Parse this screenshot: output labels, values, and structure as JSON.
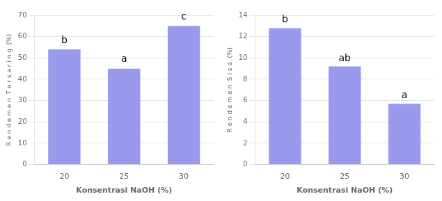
{
  "chart_data": [
    {
      "type": "bar",
      "categories": [
        "20",
        "25",
        "30"
      ],
      "values": [
        54,
        45,
        65
      ],
      "color": "#9999ee",
      "ylabel": "R e n d e m e n  T e r s a r i n g  (%)",
      "xlabel": "Konsentrasi NaOH (%)",
      "ylim": [
        0,
        70
      ],
      "yticks": [
        0,
        10,
        20,
        30,
        40,
        50,
        60,
        70
      ],
      "grid": true,
      "annotations": [
        {
          "text": "b",
          "x": "20",
          "y": 56
        },
        {
          "text": "a",
          "x": "25",
          "y": 47
        },
        {
          "text": "c",
          "x": "30",
          "y": 67
        }
      ]
    },
    {
      "type": "bar",
      "categories": [
        "20",
        "25",
        "30"
      ],
      "values": [
        12.8,
        9.2,
        5.7
      ],
      "color": "#9999ee",
      "ylabel": "R e n d e m e n  S i s a  (%)",
      "xlabel": "Konsentrasi NaOH (%)",
      "ylim": [
        0,
        14
      ],
      "yticks": [
        0,
        2,
        4,
        6,
        8,
        10,
        12,
        14
      ],
      "grid": true,
      "annotations": [
        {
          "text": "b",
          "x": "20",
          "y": 13.1
        },
        {
          "text": "ab",
          "x": "25",
          "y": 9.5
        },
        {
          "text": "a",
          "x": "30",
          "y": 6.0
        }
      ]
    }
  ]
}
